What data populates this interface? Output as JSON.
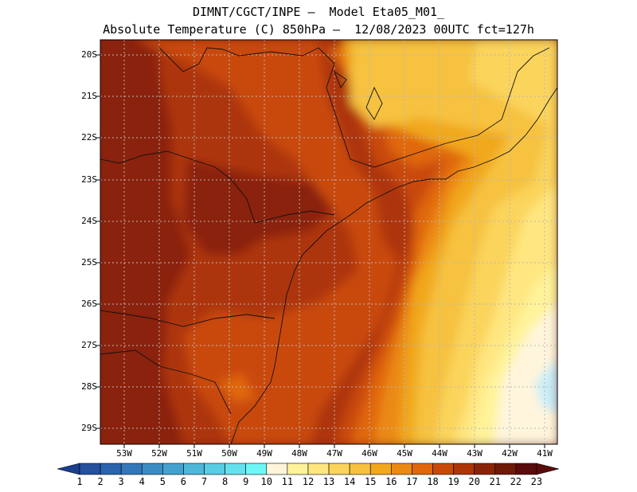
{
  "header": {
    "line1": "DIMNT/CGCT/INPE —  Model Eta05_M01_",
    "line2": "Absolute Temperature (C) 850hPa —  12/08/2023 00UTC fct=127h"
  },
  "axes": {
    "lat_labels": [
      "20S",
      "21S",
      "22S",
      "23S",
      "24S",
      "25S",
      "26S",
      "27S",
      "28S",
      "29S"
    ],
    "lon_labels": [
      "53W",
      "52W",
      "51W",
      "50W",
      "49W",
      "48W",
      "47W",
      "46W",
      "45W",
      "44W",
      "43W",
      "42W",
      "41W"
    ]
  },
  "colorbar": {
    "labels": [
      "1",
      "2",
      "3",
      "4",
      "5",
      "6",
      "7",
      "8",
      "9",
      "10",
      "11",
      "12",
      "13",
      "14",
      "15",
      "16",
      "17",
      "18",
      "19",
      "20",
      "21",
      "22",
      "23"
    ],
    "colors": [
      "#1a3f8f",
      "#24509d",
      "#2c63ad",
      "#3477b8",
      "#3c8cc4",
      "#45a2cf",
      "#4fb7d9",
      "#58cde3",
      "#63e2ee",
      "#6ff7f8",
      "#fff5dc",
      "#fff39a",
      "#ffe680",
      "#fbd45c",
      "#f6c23f",
      "#f1a81d",
      "#eb8a12",
      "#e0670a",
      "#c94a08",
      "#ad3507",
      "#8a2408",
      "#6e1a06",
      "#5a0b0b"
    ]
  }
}
